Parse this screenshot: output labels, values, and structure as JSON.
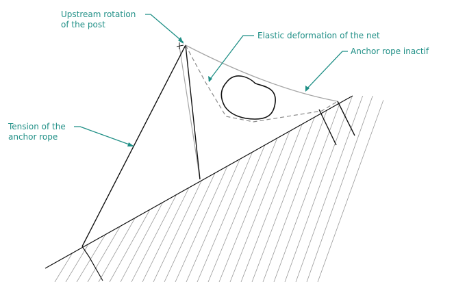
{
  "labels": {
    "upstream_rotation_line1": "Upstream rotation",
    "upstream_rotation_line2": "of the post",
    "elastic_deformation": "Elastic deformation of the net",
    "anchor_rope_inactive": "Anchor rope inactif",
    "tension_line1": "Tension of the",
    "tension_line2": "anchor rope"
  },
  "colors": {
    "annotation": "#1f8f86",
    "structure": "#111111",
    "inactive": "#a6a6a6",
    "hatch": "#9a9a9a",
    "net_dashed": "#8a8a8a"
  }
}
